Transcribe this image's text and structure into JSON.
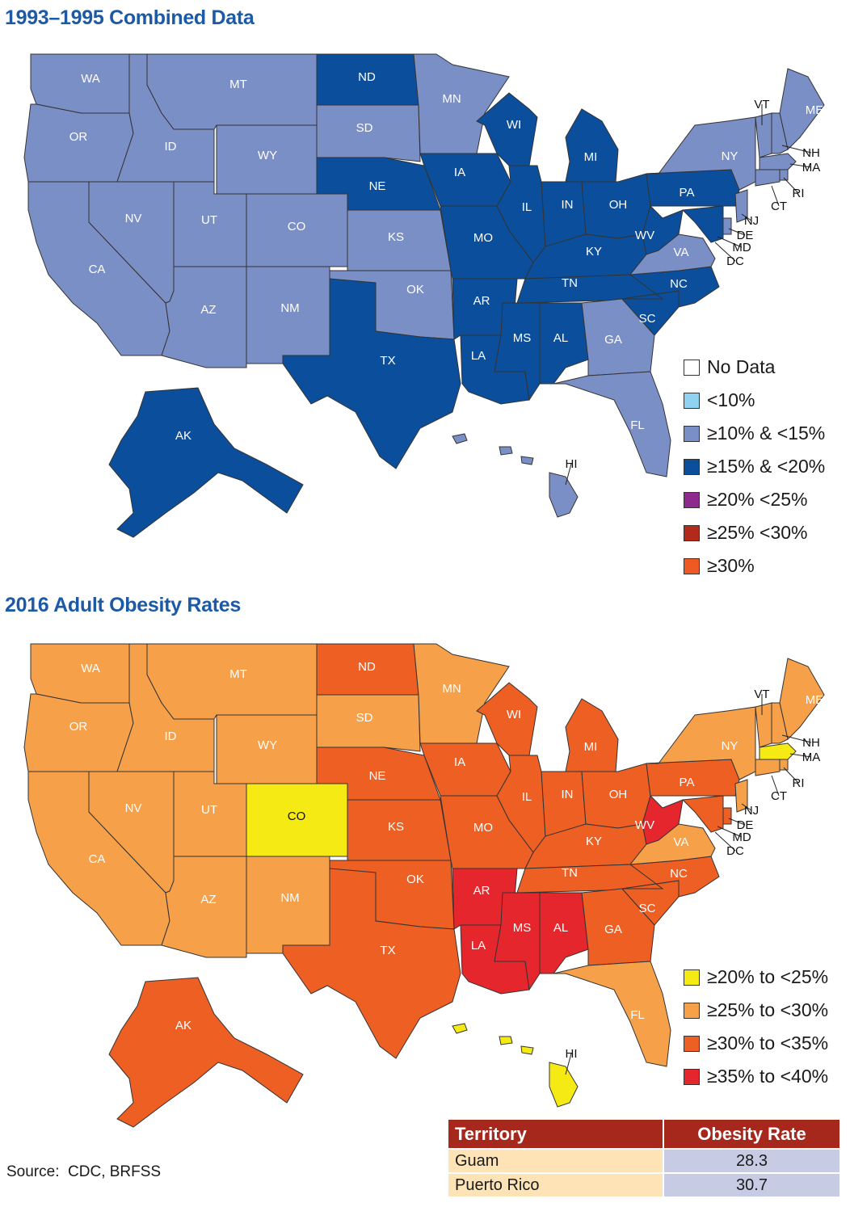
{
  "map1": {
    "title": "1993–1995 Combined Data",
    "legend": [
      {
        "label": "No Data",
        "color": "#ffffff"
      },
      {
        "label": "<10%",
        "color": "#8fd3f0"
      },
      {
        "label": "≥10% & <15%",
        "color": "#7b8fc7"
      },
      {
        "label": "≥15% & <20%",
        "color": "#0b4f9c"
      },
      {
        "label": "≥20% <25%",
        "color": "#8e2a8e"
      },
      {
        "label": "≥25% <30%",
        "color": "#b32a1c"
      },
      {
        "label": "≥30%",
        "color": "#ef5a24"
      }
    ],
    "states": [
      {
        "id": "WA",
        "color": "#7b8fc7"
      },
      {
        "id": "OR",
        "color": "#7b8fc7"
      },
      {
        "id": "CA",
        "color": "#7b8fc7"
      },
      {
        "id": "NV",
        "color": "#7b8fc7"
      },
      {
        "id": "ID",
        "color": "#7b8fc7"
      },
      {
        "id": "MT",
        "color": "#7b8fc7"
      },
      {
        "id": "WY",
        "color": "#7b8fc7"
      },
      {
        "id": "UT",
        "color": "#7b8fc7"
      },
      {
        "id": "CO",
        "color": "#7b8fc7"
      },
      {
        "id": "AZ",
        "color": "#7b8fc7"
      },
      {
        "id": "NM",
        "color": "#7b8fc7"
      },
      {
        "id": "ND",
        "color": "#0b4f9c"
      },
      {
        "id": "SD",
        "color": "#7b8fc7"
      },
      {
        "id": "NE",
        "color": "#0b4f9c"
      },
      {
        "id": "KS",
        "color": "#7b8fc7"
      },
      {
        "id": "OK",
        "color": "#7b8fc7"
      },
      {
        "id": "TX",
        "color": "#0b4f9c"
      },
      {
        "id": "MN",
        "color": "#7b8fc7"
      },
      {
        "id": "IA",
        "color": "#0b4f9c"
      },
      {
        "id": "MO",
        "color": "#0b4f9c"
      },
      {
        "id": "AR",
        "color": "#0b4f9c"
      },
      {
        "id": "LA",
        "color": "#0b4f9c"
      },
      {
        "id": "WI",
        "color": "#0b4f9c"
      },
      {
        "id": "IL",
        "color": "#0b4f9c"
      },
      {
        "id": "MI",
        "color": "#0b4f9c"
      },
      {
        "id": "IN",
        "color": "#0b4f9c"
      },
      {
        "id": "OH",
        "color": "#0b4f9c"
      },
      {
        "id": "KY",
        "color": "#0b4f9c"
      },
      {
        "id": "TN",
        "color": "#0b4f9c"
      },
      {
        "id": "MS",
        "color": "#0b4f9c"
      },
      {
        "id": "AL",
        "color": "#0b4f9c"
      },
      {
        "id": "GA",
        "color": "#7b8fc7"
      },
      {
        "id": "FL",
        "color": "#7b8fc7"
      },
      {
        "id": "SC",
        "color": "#0b4f9c"
      },
      {
        "id": "NC",
        "color": "#0b4f9c"
      },
      {
        "id": "VA",
        "color": "#7b8fc7"
      },
      {
        "id": "WV",
        "color": "#0b4f9c"
      },
      {
        "id": "PA",
        "color": "#0b4f9c"
      },
      {
        "id": "NY",
        "color": "#7b8fc7"
      },
      {
        "id": "ME",
        "color": "#7b8fc7"
      },
      {
        "id": "VT",
        "color": "#7b8fc7"
      },
      {
        "id": "NH",
        "color": "#7b8fc7"
      },
      {
        "id": "MA",
        "color": "#7b8fc7"
      },
      {
        "id": "RI",
        "color": "#7b8fc7"
      },
      {
        "id": "CT",
        "color": "#7b8fc7"
      },
      {
        "id": "NJ",
        "color": "#7b8fc7"
      },
      {
        "id": "DE",
        "color": "#7b8fc7"
      },
      {
        "id": "MD",
        "color": "#0b4f9c"
      },
      {
        "id": "AK",
        "color": "#0b4f9c"
      },
      {
        "id": "HI",
        "color": "#7b8fc7"
      }
    ]
  },
  "map2": {
    "title": "2016 Adult Obesity Rates",
    "legend": [
      {
        "label": "≥20% to <25%",
        "color": "#f5ea14"
      },
      {
        "label": "≥25% to <30%",
        "color": "#f7a04a"
      },
      {
        "label": "≥30% to <35%",
        "color": "#ee5f24"
      },
      {
        "label": "≥35% to <40%",
        "color": "#e5272d"
      }
    ],
    "states": [
      {
        "id": "WA",
        "color": "#f7a04a"
      },
      {
        "id": "OR",
        "color": "#f7a04a"
      },
      {
        "id": "CA",
        "color": "#f7a04a"
      },
      {
        "id": "NV",
        "color": "#f7a04a"
      },
      {
        "id": "ID",
        "color": "#f7a04a"
      },
      {
        "id": "MT",
        "color": "#f7a04a"
      },
      {
        "id": "WY",
        "color": "#f7a04a"
      },
      {
        "id": "UT",
        "color": "#f7a04a"
      },
      {
        "id": "CO",
        "color": "#f5ea14"
      },
      {
        "id": "AZ",
        "color": "#f7a04a"
      },
      {
        "id": "NM",
        "color": "#f7a04a"
      },
      {
        "id": "ND",
        "color": "#ee5f24"
      },
      {
        "id": "SD",
        "color": "#f7a04a"
      },
      {
        "id": "NE",
        "color": "#ee5f24"
      },
      {
        "id": "KS",
        "color": "#ee5f24"
      },
      {
        "id": "OK",
        "color": "#ee5f24"
      },
      {
        "id": "TX",
        "color": "#ee5f24"
      },
      {
        "id": "MN",
        "color": "#f7a04a"
      },
      {
        "id": "IA",
        "color": "#ee5f24"
      },
      {
        "id": "MO",
        "color": "#ee5f24"
      },
      {
        "id": "AR",
        "color": "#e5272d"
      },
      {
        "id": "LA",
        "color": "#e5272d"
      },
      {
        "id": "WI",
        "color": "#ee5f24"
      },
      {
        "id": "IL",
        "color": "#ee5f24"
      },
      {
        "id": "MI",
        "color": "#ee5f24"
      },
      {
        "id": "IN",
        "color": "#ee5f24"
      },
      {
        "id": "OH",
        "color": "#ee5f24"
      },
      {
        "id": "KY",
        "color": "#ee5f24"
      },
      {
        "id": "TN",
        "color": "#ee5f24"
      },
      {
        "id": "MS",
        "color": "#e5272d"
      },
      {
        "id": "AL",
        "color": "#e5272d"
      },
      {
        "id": "GA",
        "color": "#ee5f24"
      },
      {
        "id": "FL",
        "color": "#f7a04a"
      },
      {
        "id": "SC",
        "color": "#ee5f24"
      },
      {
        "id": "NC",
        "color": "#ee5f24"
      },
      {
        "id": "VA",
        "color": "#f7a04a"
      },
      {
        "id": "WV",
        "color": "#e5272d"
      },
      {
        "id": "PA",
        "color": "#ee5f24"
      },
      {
        "id": "NY",
        "color": "#f7a04a"
      },
      {
        "id": "ME",
        "color": "#f7a04a"
      },
      {
        "id": "VT",
        "color": "#f7a04a"
      },
      {
        "id": "NH",
        "color": "#f7a04a"
      },
      {
        "id": "MA",
        "color": "#f5ea14"
      },
      {
        "id": "RI",
        "color": "#f7a04a"
      },
      {
        "id": "CT",
        "color": "#f7a04a"
      },
      {
        "id": "NJ",
        "color": "#f7a04a"
      },
      {
        "id": "DE",
        "color": "#ee5f24"
      },
      {
        "id": "MD",
        "color": "#ee5f24"
      },
      {
        "id": "AK",
        "color": "#ee5f24"
      },
      {
        "id": "HI",
        "color": "#f5ea14"
      }
    ]
  },
  "source": "Source:  CDC, BRFSS",
  "territory_table": {
    "headers": [
      "Territory",
      "Obesity Rate"
    ],
    "rows": [
      {
        "territory": "Guam",
        "rate": "28.3"
      },
      {
        "territory": "Puerto Rico",
        "rate": "30.7"
      }
    ]
  }
}
